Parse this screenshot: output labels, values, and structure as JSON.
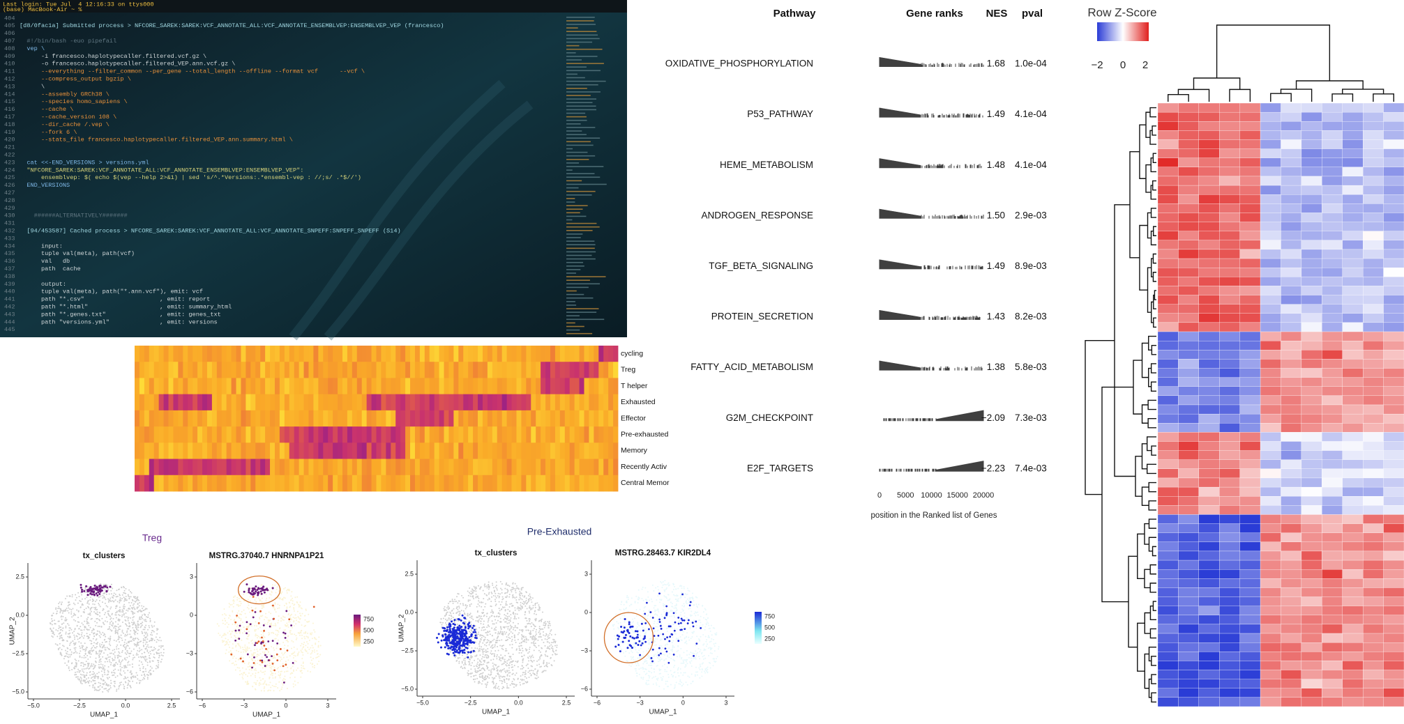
{
  "terminal": {
    "header": [
      "Last login: Tue Jul  4 12:16:33 on ttys000",
      "(base) MacBook-Air ~ %"
    ],
    "lines": [
      {
        "n": "404",
        "text": ""
      },
      {
        "n": "405",
        "text": "[d8/0fac1a] Submitted process > NFCORE_SAREK:SAREK:VCF_ANNOTATE_ALL:VCF_ANNOTATE_ENSEMBLVEP:ENSEMBLVEP_VEP (francesco)"
      },
      {
        "n": "406",
        "text": ""
      },
      {
        "n": "407",
        "text": "  #!/bin/bash -euo pipefail"
      },
      {
        "n": "408",
        "text": "  vep \\"
      },
      {
        "n": "409",
        "text": "      -i francesco.haplotypecaller.filtered.vcf.gz \\"
      },
      {
        "n": "410",
        "text": "      -o francesco.haplotypecaller.filtered_VEP.ann.vcf.gz \\"
      },
      {
        "n": "411",
        "text": "      --everything --filter_common --per_gene --total_length --offline --format vcf      --vcf \\"
      },
      {
        "n": "412",
        "text": "      --compress_output bgzip \\"
      },
      {
        "n": "413",
        "text": "      \\"
      },
      {
        "n": "414",
        "text": "      --assembly GRCh38 \\"
      },
      {
        "n": "415",
        "text": "      --species homo_sapiens \\"
      },
      {
        "n": "416",
        "text": "      --cache \\"
      },
      {
        "n": "417",
        "text": "      --cache_version 108 \\"
      },
      {
        "n": "418",
        "text": "      --dir_cache /.vep \\"
      },
      {
        "n": "419",
        "text": "      --fork 6 \\"
      },
      {
        "n": "420",
        "text": "      --stats_file francesco.haplotypecaller.filtered_VEP.ann.summary.html \\"
      },
      {
        "n": "421",
        "text": ""
      },
      {
        "n": "422",
        "text": ""
      },
      {
        "n": "423",
        "text": "  cat <<-END_VERSIONS > versions.yml"
      },
      {
        "n": "424",
        "text": "  \"NFCORE_SAREK:SAREK:VCF_ANNOTATE_ALL:VCF_ANNOTATE_ENSEMBLVEP:ENSEMBLVEP_VEP\":"
      },
      {
        "n": "425",
        "text": "      ensemblvep: $( echo $(vep --help 2>&1) | sed 's/^.*Versions:.*ensembl-vep : //;s/ .*$//')"
      },
      {
        "n": "426",
        "text": "  END_VERSIONS"
      },
      {
        "n": "427",
        "text": ""
      },
      {
        "n": "428",
        "text": ""
      },
      {
        "n": "429",
        "text": ""
      },
      {
        "n": "430",
        "text": "    ######ALTERNATIVELY#######"
      },
      {
        "n": "431",
        "text": ""
      },
      {
        "n": "432",
        "text": "  [94/453587] Cached process > NFCORE_SAREK:SAREK:VCF_ANNOTATE_ALL:VCF_ANNOTATE_SNPEFF:SNPEFF_SNPEFF (S14)"
      },
      {
        "n": "433",
        "text": ""
      },
      {
        "n": "434",
        "text": "      input:"
      },
      {
        "n": "435",
        "text": "      tuple val(meta), path(vcf)"
      },
      {
        "n": "436",
        "text": "      val   db"
      },
      {
        "n": "437",
        "text": "      path  cache"
      },
      {
        "n": "438",
        "text": ""
      },
      {
        "n": "439",
        "text": "      output:"
      },
      {
        "n": "440",
        "text": "      tuple val(meta), path(\"*.ann.vcf\"), emit: vcf"
      },
      {
        "n": "441",
        "text": "      path \"*.csv\"                     , emit: report"
      },
      {
        "n": "442",
        "text": "      path \"*.html\"                    , emit: summary_html"
      },
      {
        "n": "443",
        "text": "      path \"*.genes.txt\"               , emit: genes_txt"
      },
      {
        "n": "444",
        "text": "      path \"versions.yml\"              , emit: versions"
      },
      {
        "n": "445",
        "text": ""
      }
    ]
  },
  "gsea": {
    "headers": {
      "pathway": "Pathway",
      "ranks": "Gene ranks",
      "nes": "NES",
      "pval": "pval"
    },
    "rows": [
      {
        "pathway": "OXIDATIVE_PHOSPHORYLATION",
        "nes": "1.68",
        "pval": "1.0e-04"
      },
      {
        "pathway": "P53_PATHWAY",
        "nes": "1.49",
        "pval": "4.1e-04"
      },
      {
        "pathway": "HEME_METABOLISM",
        "nes": "1.48",
        "pval": "4.1e-04"
      },
      {
        "pathway": "ANDROGEN_RESPONSE",
        "nes": "1.50",
        "pval": "2.9e-03"
      },
      {
        "pathway": "TGF_BETA_SIGNALING",
        "nes": "1.49",
        "pval": "8.9e-03"
      },
      {
        "pathway": "PROTEIN_SECRETION",
        "nes": "1.43",
        "pval": "8.2e-03"
      },
      {
        "pathway": "FATTY_ACID_METABOLISM",
        "nes": "1.38",
        "pval": "5.8e-03"
      },
      {
        "pathway": "G2M_CHECKPOINT",
        "nes": "−2.09",
        "pval": "7.3e-03"
      },
      {
        "pathway": "E2F_TARGETS",
        "nes": "−2.23",
        "pval": "7.4e-03"
      }
    ],
    "axis_ticks": [
      "0",
      "5000",
      "10000",
      "15000",
      "20000"
    ],
    "axis_label": "position in the Ranked list of Genes"
  },
  "zscore_heatmap": {
    "title": "Row Z-Score",
    "ticks": [
      "−2",
      "0",
      "2"
    ]
  },
  "state_heatmap": {
    "labels": [
      "cycling",
      "Treg",
      "T helper",
      "Exhausted",
      "Effector",
      "Pre-exhausted",
      "Memory",
      "Recently Activ",
      "Central Memor"
    ]
  },
  "umap": {
    "groups": [
      "Treg",
      "Pre-Exhausted"
    ],
    "panels": [
      {
        "title": "tx_clusters",
        "xlabel": "UMAP_1",
        "ylabel": "UMAP_2",
        "xticks": [
          "−5.0",
          "−2.5",
          "0.0",
          "2.5"
        ],
        "yticks": [
          "2.5",
          "0.0",
          "−2.5",
          "−5.0"
        ]
      },
      {
        "title": "MSTRG.37040.7 HNRNPA1P21",
        "xlabel": "UMAP_1",
        "xticks": [
          "−6",
          "−3",
          "0",
          "3"
        ],
        "yticks": [
          "3",
          "0",
          "−3",
          "−6"
        ],
        "legend": [
          "750",
          "500",
          "250"
        ]
      },
      {
        "title": "tx_clusters",
        "xlabel": "UMAP_1",
        "ylabel": "UMAP_2",
        "xticks": [
          "−5.0",
          "−2.5",
          "0.0",
          "2.5"
        ],
        "yticks": [
          "2.5",
          "0.0",
          "−2.5",
          "−5.0"
        ]
      },
      {
        "title": "MSTRG.28463.7 KIR2DL4",
        "xlabel": "UMAP_1",
        "xticks": [
          "−6",
          "−3",
          "0",
          "3"
        ],
        "yticks": [
          "3",
          "0",
          "−3",
          "−6"
        ],
        "legend": [
          "750",
          "500",
          "250"
        ]
      }
    ]
  }
}
